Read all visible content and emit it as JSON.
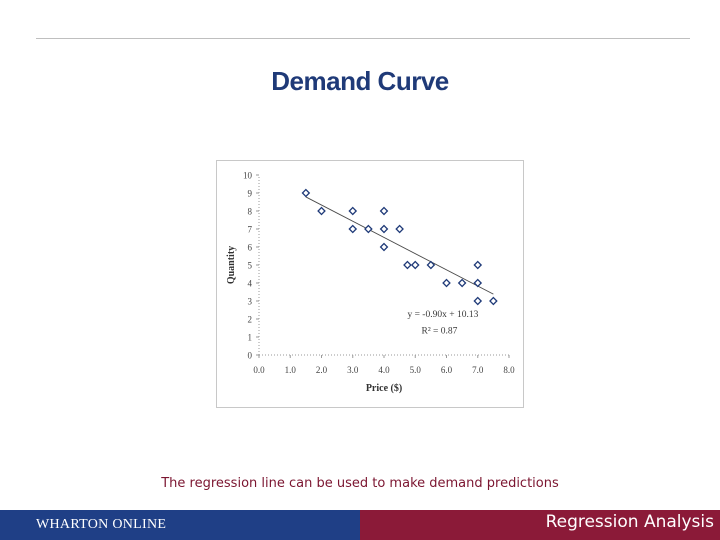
{
  "slide": {
    "title": "Demand Curve",
    "caption": "The regression line can be used to make demand predictions",
    "footer_brand": "WHARTON ONLINE",
    "footer_course": "Regression Analysis"
  },
  "colors": {
    "title": "#1f3a78",
    "caption": "#7b1530",
    "footer_left": "#1f3f86",
    "footer_right": "#8b1a38",
    "marker": "#1f3a78",
    "trendline": "#4a4a4a"
  },
  "chart_data": {
    "type": "scatter",
    "title": "",
    "xlabel": "Price ($)",
    "ylabel": "Quantity",
    "xlim": [
      0,
      8
    ],
    "ylim": [
      0,
      10
    ],
    "x_ticks": [
      "0.0",
      "1.0",
      "2.0",
      "3.0",
      "4.0",
      "5.0",
      "6.0",
      "7.0",
      "8.0"
    ],
    "y_ticks": [
      "0",
      "1",
      "2",
      "3",
      "4",
      "5",
      "6",
      "7",
      "8",
      "9",
      "10"
    ],
    "grid": false,
    "marker": "diamond",
    "points": [
      {
        "x": 1.5,
        "y": 9
      },
      {
        "x": 2.0,
        "y": 8
      },
      {
        "x": 3.0,
        "y": 8
      },
      {
        "x": 3.0,
        "y": 7
      },
      {
        "x": 3.5,
        "y": 7
      },
      {
        "x": 4.0,
        "y": 8
      },
      {
        "x": 4.0,
        "y": 7
      },
      {
        "x": 4.0,
        "y": 6
      },
      {
        "x": 4.5,
        "y": 7
      },
      {
        "x": 4.75,
        "y": 5
      },
      {
        "x": 5.0,
        "y": 5
      },
      {
        "x": 5.5,
        "y": 5
      },
      {
        "x": 6.0,
        "y": 4
      },
      {
        "x": 6.5,
        "y": 4
      },
      {
        "x": 7.0,
        "y": 5
      },
      {
        "x": 7.0,
        "y": 4
      },
      {
        "x": 7.0,
        "y": 3
      },
      {
        "x": 7.5,
        "y": 3
      }
    ],
    "trendline": {
      "slope": -0.9,
      "intercept": 10.13,
      "x_range": [
        1.5,
        7.5
      ],
      "equation_label": "y = -0.90x + 10.13",
      "r2_label": "R² = 0.87"
    }
  }
}
